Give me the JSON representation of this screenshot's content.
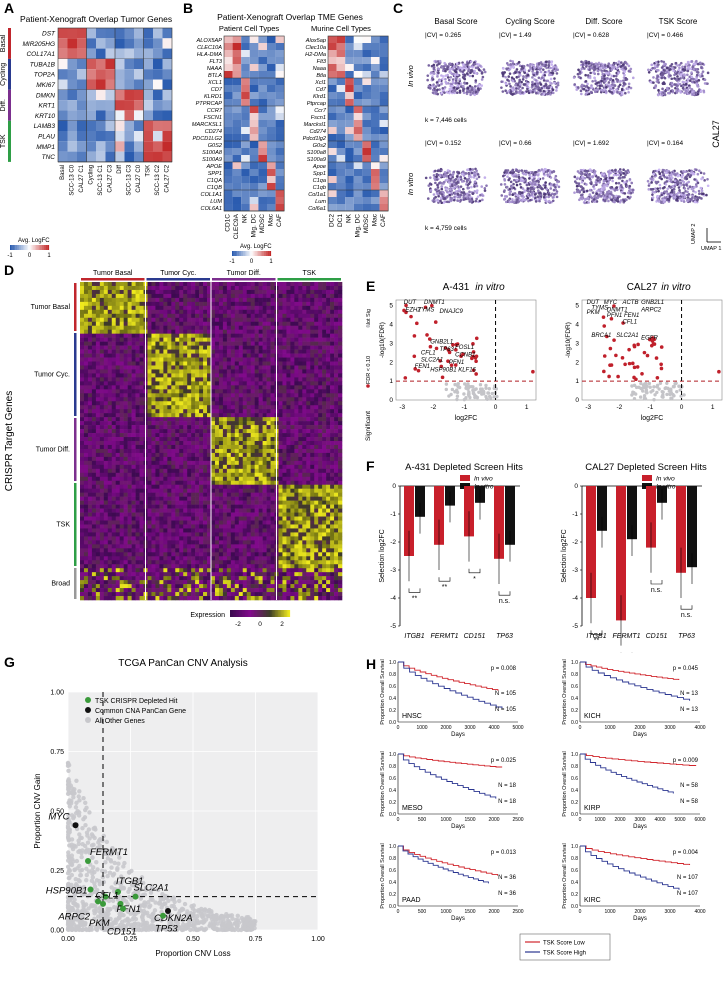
{
  "panelA": {
    "label": "A",
    "title": "Patient-Xenograft Overlap Tumor Genes",
    "groups": [
      {
        "name": "Basal",
        "color": "#c0262d",
        "genes": [
          "DST",
          "MIR205HG",
          "COL17A1"
        ]
      },
      {
        "name": "Cycling",
        "color": "#2a3a8f",
        "genes": [
          "TUBA1B",
          "TOP2A",
          "MKI67"
        ]
      },
      {
        "name": "Diff.",
        "color": "#7b2f8e",
        "genes": [
          "DMKN",
          "KRT1",
          "KRT10"
        ]
      },
      {
        "name": "TSK",
        "color": "#2e9e46",
        "genes": [
          "LAMB3",
          "PLAU",
          "MMP1",
          "TNC"
        ]
      }
    ],
    "columns": [
      "Basal",
      "SCC-13 C0",
      "CAL27 C1",
      "Cycling",
      "SCC-13 C1",
      "CAL27 C3",
      "Diff",
      "SCC-13 C3",
      "CAL27 C0",
      "TSK",
      "SCC-13 C2",
      "CAL27 C2"
    ],
    "legend_title": "Avg. LogFC",
    "legend_ticks": [
      "-1",
      "0",
      "1"
    ]
  },
  "panelB": {
    "label": "B",
    "title": "Patient-Xenograft Overlap TME Genes",
    "left_subtitle": "Patient Cell Types",
    "right_subtitle": "Murine Cell Types",
    "left_genes": [
      "ALOX5AP",
      "CLEC10A",
      "HLA-DMA",
      "FLT3",
      "NAAA",
      "BTLA",
      "XCL1",
      "CD7",
      "KLRD1",
      "PTPRCAP",
      "CCR7",
      "FSCN1",
      "MARCKSL1",
      "CD274",
      "PDCD1LG2",
      "G0S2",
      "S100A8",
      "S100A9",
      "APOE",
      "SPP1",
      "C1QA",
      "C1QB",
      "COL1A1",
      "LUM",
      "COL6A1"
    ],
    "right_genes": [
      "Alox5ap",
      "Clec10a",
      "H2-DMa",
      "Flt3",
      "Naaa",
      "Btla",
      "Xcl1",
      "Cd7",
      "Klrd1",
      "Ptprcap",
      "Ccr7",
      "Fscn1",
      "Marcksl1",
      "Cd274",
      "Pdcd1lg2",
      "G0s2",
      "S100a8",
      "S100a9",
      "Apoe",
      "Spp1",
      "C1qa",
      "C1qb",
      "Col1a1",
      "Lum",
      "Col6a1"
    ],
    "left_columns": [
      "CD1C",
      "CLEC9A",
      "NK",
      "Mig. DC",
      "MDSC",
      "Mac",
      "CAF"
    ],
    "right_columns": [
      "DC2",
      "DC1",
      "NK",
      "Mig. DC",
      "MDSC",
      "Mac",
      "CAF"
    ],
    "legend_title": "Avg. LogFC",
    "legend_ticks": [
      "-1",
      "0",
      "1"
    ]
  },
  "panelC": {
    "label": "C",
    "columns": [
      "Basal Score",
      "Cycling Score",
      "Diff. Score",
      "TSK Score"
    ],
    "rows": [
      {
        "name": "In vivo",
        "cv": [
          "|CV| = 0.265",
          "|CV| = 1.49",
          "|CV| = 0.628",
          "|CV| = 0.466"
        ],
        "cells": "k = 7,446 cells"
      },
      {
        "name": "In vitro",
        "cv": [
          "|CV| = 0.152",
          "|CV| = 0.66",
          "|CV| = 1.692",
          "|CV| = 0.164"
        ],
        "cells": "k = 4,759 cells"
      }
    ],
    "cell_line": "CAL27",
    "umap1": "UMAP 1",
    "umap2": "UMAP 2"
  },
  "panelD": {
    "label": "D",
    "columns": [
      {
        "name": "Tumor Basal",
        "color": "#c0262d"
      },
      {
        "name": "Tumor Cyc.",
        "color": "#2a3a8f"
      },
      {
        "name": "Tumor Diff.",
        "color": "#7b2f8e"
      },
      {
        "name": "TSK",
        "color": "#2e9e46"
      }
    ],
    "rows": [
      {
        "name": "Tumor Basal",
        "color": "#c0262d"
      },
      {
        "name": "Tumor Cyc.",
        "color": "#2a3a8f"
      },
      {
        "name": "Tumor Diff.",
        "color": "#7b2f8e"
      },
      {
        "name": "TSK",
        "color": "#2e9e46"
      },
      {
        "name": "Broad",
        "color": "#999999"
      }
    ],
    "ylabel": "CRISPR Target Genes",
    "legend_title": "Expression",
    "legend_ticks": [
      "-2",
      "0",
      "2"
    ]
  },
  "panelE": {
    "label": "E",
    "plots": [
      {
        "title": "A-431",
        "title_it": "in vitro",
        "genes": [
          "DUT",
          "DNMT1",
          "EZH2",
          "TYMS",
          "DNAJC9",
          "GNB2L1",
          "FOSL1",
          "TP63",
          "CCNB1",
          "CFL1",
          "SLC2A1",
          "PFN1",
          "FEN1",
          "HSP90B1",
          "KLF16"
        ]
      },
      {
        "title": "CAL27",
        "title_it": "in vitro",
        "genes": [
          "DUT",
          "MYC",
          "ACTB",
          "GNB2L1",
          "TYMS",
          "DNMT1",
          "PKM",
          "ARPC2",
          "PFN1",
          "FEN1",
          "CFL1",
          "BRCA1",
          "SLC2A1",
          "EGFR"
        ]
      }
    ],
    "notsig": "Not Sig",
    "fdr": "FDR < 0.10",
    "significant": "Significant",
    "ylabel": "-log10(FDR)",
    "xlabel": "log2FC",
    "xticks": [
      "-3",
      "-2",
      "-1",
      "0",
      "1"
    ],
    "yticks": [
      "0",
      "1",
      "2",
      "3",
      "4",
      "5"
    ]
  },
  "panelF": {
    "label": "F",
    "legend": [
      "In vivo",
      "In vitro"
    ],
    "colors": [
      "#c8202b",
      "#111111"
    ],
    "ylabel": "Selection log2FC",
    "yticks": [
      "0",
      "-1",
      "-2",
      "-3",
      "-4",
      "-5"
    ],
    "plots": [
      {
        "title": "A-431 Depleted Screen Hits",
        "genes": [
          "ITGB1",
          "FERMT1",
          "CD151",
          "TP63"
        ],
        "invivo": [
          -2.5,
          -2.1,
          -1.8,
          -2.6
        ],
        "invitro": [
          -1.1,
          -0.7,
          -0.6,
          -2.1
        ],
        "sig": [
          "**",
          "**",
          "*",
          "n.s."
        ]
      },
      {
        "title": "CAL27 Depleted Screen Hits",
        "genes": [
          "ITGB1",
          "FERMT1",
          "CD151",
          "TP63"
        ],
        "invivo": [
          -4.0,
          -4.8,
          -2.2,
          -3.1
        ],
        "invitro": [
          -1.6,
          -1.9,
          -0.6,
          -2.9
        ],
        "sig": [
          "**",
          "**",
          "n.s.",
          "n.s."
        ]
      }
    ]
  },
  "panelG": {
    "label": "G",
    "chart_data": {
      "type": "scatter",
      "title": "TCGA PanCan CNV Analysis",
      "xlabel": "Proportion CNV Loss",
      "ylabel": "Proportion CNV Gain",
      "xticks": [
        "0.00",
        "0.25",
        "0.50",
        "0.75",
        "1.00"
      ],
      "yticks": [
        "0.00",
        "0.25",
        "0.50",
        "0.75",
        "1.00"
      ],
      "xlim": [
        0,
        1
      ],
      "ylim": [
        0,
        1
      ],
      "legend": [
        {
          "name": "TSK CRISPR Depleted Hit",
          "color": "#3a9a3a"
        },
        {
          "name": "Common CNA PanCan Gene",
          "color": "#111111"
        },
        {
          "name": "All Other Genes",
          "color": "#c8c8cc"
        }
      ],
      "highlight": [
        {
          "name": "MYC",
          "x": 0.03,
          "y": 0.44,
          "kind": "common"
        },
        {
          "name": "FERMT1",
          "x": 0.08,
          "y": 0.29,
          "kind": "tsk"
        },
        {
          "name": "ITGB1",
          "x": 0.2,
          "y": 0.16,
          "kind": "tsk"
        },
        {
          "name": "HSP90B1",
          "x": 0.09,
          "y": 0.17,
          "kind": "tsk"
        },
        {
          "name": "CFL1",
          "x": 0.15,
          "y": 0.14,
          "kind": "tsk"
        },
        {
          "name": "SLC2A1",
          "x": 0.27,
          "y": 0.14,
          "kind": "tsk"
        },
        {
          "name": "PFN1",
          "x": 0.21,
          "y": 0.11,
          "kind": "tsk"
        },
        {
          "name": "ARPC2",
          "x": 0.12,
          "y": 0.12,
          "kind": "tsk"
        },
        {
          "name": "PKM",
          "x": 0.14,
          "y": 0.11,
          "kind": "tsk"
        },
        {
          "name": "CDKN2A",
          "x": 0.4,
          "y": 0.08,
          "kind": "common"
        },
        {
          "name": "TP53",
          "x": 0.38,
          "y": 0.06,
          "kind": "tsk"
        },
        {
          "name": "CD151",
          "x": 0.22,
          "y": 0.09,
          "kind": "tsk"
        }
      ],
      "vline_x": 0.14,
      "hline_y": 0.14
    }
  },
  "panelH": {
    "label": "H",
    "ylabel": "Proportion Overall Survival",
    "xlabel": "Days",
    "legend": [
      "TSK Score Low",
      "TSK Score High"
    ],
    "colors": [
      "#d0242b",
      "#2a3590"
    ],
    "plots": [
      {
        "cancer": "HNSC",
        "p": "p = 0.008",
        "n_low": "N = 105",
        "n_high": "N = 105",
        "xticks": [
          "0",
          "1000",
          "2000",
          "3000",
          "4000",
          "5000"
        ]
      },
      {
        "cancer": "KICH",
        "p": "p = 0.045",
        "n_low": "N = 13",
        "n_high": "N = 13",
        "xticks": [
          "0",
          "1000",
          "2000",
          "3000",
          "4000"
        ]
      },
      {
        "cancer": "MESO",
        "p": "p = 0.025",
        "n_low": "N = 18",
        "n_high": "N = 18",
        "xticks": [
          "0",
          "500",
          "1000",
          "1500",
          "2000",
          "2500"
        ]
      },
      {
        "cancer": "KIRP",
        "p": "p = 0.009",
        "n_low": "N = 58",
        "n_high": "N = 58",
        "xticks": [
          "0",
          "1000",
          "2000",
          "3000",
          "4000",
          "5000",
          "6000"
        ]
      },
      {
        "cancer": "PAAD",
        "p": "p = 0.013",
        "n_low": "N = 36",
        "n_high": "N = 36",
        "xticks": [
          "0",
          "500",
          "1000",
          "1500",
          "2000",
          "2500"
        ]
      },
      {
        "cancer": "KIRC",
        "p": "p = 0.004",
        "n_low": "N = 107",
        "n_high": "N = 107",
        "xticks": [
          "0",
          "1000",
          "2000",
          "3000",
          "4000"
        ]
      }
    ],
    "yticks": [
      "0.0",
      "0.2",
      "0.4",
      "0.6",
      "0.8",
      "1.0"
    ]
  }
}
